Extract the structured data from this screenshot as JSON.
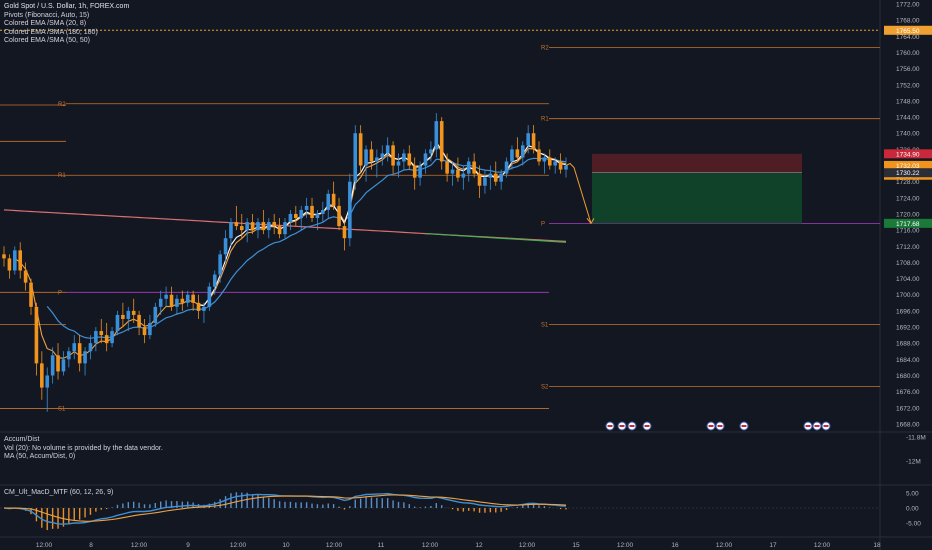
{
  "header": {
    "title": "Gold Spot / U.S. Dollar, 1h, FOREX.com",
    "indicators": [
      "Pivots (Fibonacci, Auto, 15)",
      "Colored EMA /SMA (20, 8)",
      "Colored EMA /SMA (180, 180)",
      "Colored EMA /SMA (50, 50)"
    ]
  },
  "volume_pane": {
    "labels": [
      "Accum/Dist",
      "Vol (20): No volume is provided by the data vendor.",
      "MA (50, Accum/Dist, 0)"
    ],
    "scale_labels": [
      "-11.8M",
      "-12M"
    ]
  },
  "macd_pane": {
    "label": "CM_Ult_MacD_MTF (60, 12, 26, 9)",
    "scale_labels": [
      "5.00",
      "0.00",
      "-5.00"
    ]
  },
  "colors": {
    "background": "#131722",
    "up_candle": "#3a8fd9",
    "down_candle": "#f0941d",
    "pivot_line": "#c8732a",
    "pivot_p": "#a93bc4",
    "ema_fast": "#ffffff",
    "ema_mid": "#3f8fd3",
    "ema_slow": "#d97070",
    "stop_zone": "#5a1f25",
    "target_zone": "#0f4a2a"
  },
  "chart_data": {
    "type": "candlestick",
    "symbol": "Gold Spot / U.S. Dollar",
    "timeframe": "1h",
    "y_range": [
      1666,
      1773
    ],
    "price_ticks": [
      "1772.00",
      "1768.00",
      "1764.00",
      "1760.00",
      "1756.00",
      "1752.00",
      "1748.00",
      "1744.00",
      "1740.00",
      "1736.00",
      "1732.00",
      "1728.00",
      "1724.00",
      "1720.00",
      "1716.00",
      "1712.00",
      "1708.00",
      "1704.00",
      "1700.00",
      "1696.00",
      "1692.00",
      "1688.00",
      "1684.00",
      "1680.00",
      "1676.00",
      "1672.00",
      "1668.00"
    ],
    "x_ticks": [
      "12:00",
      "8",
      "12:00",
      "9",
      "12:00",
      "10",
      "12:00",
      "11",
      "12:00",
      "12",
      "12:00",
      "15",
      "12:00",
      "16",
      "12:00",
      "17",
      "12:00",
      "18"
    ],
    "price_badges": [
      {
        "label": "1765.50",
        "value": 1765.5,
        "color": "#f0a030"
      },
      {
        "label": "1734.90",
        "value": 1734.9,
        "color": "#c9283a"
      },
      {
        "label": "1732.03",
        "value": 1732.03,
        "color": "#f0941d"
      },
      {
        "label": "29:59",
        "value": 1729.6,
        "color": "#f0941d"
      },
      {
        "label": "1730.22",
        "value": 1730.22,
        "color": "#2a2e39"
      },
      {
        "label": "1717.68",
        "value": 1717.68,
        "color": "#1b7a3a"
      }
    ],
    "pivot_levels": [
      {
        "label": "R2",
        "value": 1747
      },
      {
        "label": "R1",
        "value": 1743.6
      },
      {
        "label": "P",
        "value": 1717.68
      },
      {
        "label": "S1",
        "value": 1692.6
      },
      {
        "label": "S2",
        "value": 1677.3
      },
      {
        "label": "R2",
        "value": 1747.3
      },
      {
        "label": "R1",
        "value": 1729.6
      },
      {
        "label": "P",
        "value": 1700.6
      },
      {
        "label": "S1",
        "value": 1671.8
      },
      {
        "label": "R2",
        "value": 1761.2
      }
    ],
    "extra_level": 1765.5,
    "trade_box": {
      "entry": 1730.22,
      "stop": 1734.9,
      "target": 1717.68
    },
    "candles": [
      [
        1710,
        1712,
        1707,
        1709
      ],
      [
        1709,
        1710,
        1704,
        1706
      ],
      [
        1706,
        1712,
        1705,
        1711
      ],
      [
        1711,
        1713,
        1704,
        1706
      ],
      [
        1706,
        1708,
        1701,
        1703
      ],
      [
        1703,
        1704,
        1695,
        1697
      ],
      [
        1697,
        1698,
        1680,
        1683
      ],
      [
        1683,
        1686,
        1674,
        1677
      ],
      [
        1677,
        1682,
        1671,
        1680
      ],
      [
        1680,
        1687,
        1678,
        1685
      ],
      [
        1685,
        1688,
        1679,
        1681
      ],
      [
        1681,
        1686,
        1680,
        1684
      ],
      [
        1684,
        1687,
        1682,
        1686
      ],
      [
        1686,
        1690,
        1684,
        1688
      ],
      [
        1688,
        1690,
        1681,
        1683
      ],
      [
        1683,
        1687,
        1680,
        1686
      ],
      [
        1686,
        1690,
        1684,
        1688
      ],
      [
        1688,
        1692,
        1686,
        1691
      ],
      [
        1691,
        1694,
        1688,
        1690
      ],
      [
        1690,
        1693,
        1686,
        1688
      ],
      [
        1688,
        1692,
        1687,
        1691
      ],
      [
        1691,
        1696,
        1690,
        1695
      ],
      [
        1695,
        1698,
        1692,
        1694
      ],
      [
        1694,
        1697,
        1691,
        1696
      ],
      [
        1696,
        1699,
        1693,
        1695
      ],
      [
        1695,
        1696,
        1690,
        1692
      ],
      [
        1692,
        1694,
        1688,
        1690
      ],
      [
        1690,
        1695,
        1689,
        1693
      ],
      [
        1693,
        1698,
        1692,
        1697
      ],
      [
        1697,
        1701,
        1695,
        1699
      ],
      [
        1699,
        1702,
        1697,
        1700
      ],
      [
        1700,
        1702,
        1696,
        1697
      ],
      [
        1697,
        1700,
        1695,
        1699
      ],
      [
        1699,
        1701,
        1696,
        1698
      ],
      [
        1698,
        1701,
        1697,
        1700
      ],
      [
        1700,
        1701,
        1696,
        1698
      ],
      [
        1698,
        1700,
        1694,
        1696
      ],
      [
        1696,
        1698,
        1693,
        1697
      ],
      [
        1697,
        1703,
        1696,
        1702
      ],
      [
        1702,
        1706,
        1700,
        1705
      ],
      [
        1705,
        1711,
        1703,
        1710
      ],
      [
        1710,
        1716,
        1708,
        1714
      ],
      [
        1714,
        1719,
        1712,
        1718
      ],
      [
        1718,
        1722,
        1716,
        1717
      ],
      [
        1717,
        1720,
        1714,
        1716
      ],
      [
        1716,
        1719,
        1713,
        1718
      ],
      [
        1718,
        1720,
        1715,
        1716
      ],
      [
        1716,
        1719,
        1714,
        1718
      ],
      [
        1718,
        1721,
        1715,
        1716
      ],
      [
        1716,
        1719,
        1714,
        1718
      ],
      [
        1718,
        1720,
        1715,
        1717
      ],
      [
        1717,
        1719,
        1714,
        1715
      ],
      [
        1715,
        1719,
        1714,
        1718
      ],
      [
        1718,
        1721,
        1716,
        1720
      ],
      [
        1720,
        1722,
        1717,
        1719
      ],
      [
        1719,
        1722,
        1716,
        1721
      ],
      [
        1721,
        1724,
        1719,
        1722
      ],
      [
        1722,
        1724,
        1718,
        1719
      ],
      [
        1719,
        1721,
        1716,
        1720
      ],
      [
        1720,
        1723,
        1718,
        1721
      ],
      [
        1721,
        1726,
        1719,
        1725
      ],
      [
        1725,
        1728,
        1721,
        1722
      ],
      [
        1722,
        1724,
        1716,
        1717
      ],
      [
        1717,
        1718,
        1711,
        1714
      ],
      [
        1714,
        1730,
        1712,
        1728
      ],
      [
        1728,
        1742,
        1726,
        1740
      ],
      [
        1740,
        1742,
        1730,
        1732
      ],
      [
        1732,
        1737,
        1728,
        1736
      ],
      [
        1736,
        1738,
        1731,
        1733
      ],
      [
        1733,
        1736,
        1729,
        1734
      ],
      [
        1734,
        1737,
        1732,
        1735
      ],
      [
        1735,
        1739,
        1733,
        1737
      ],
      [
        1737,
        1738,
        1730,
        1732
      ],
      [
        1732,
        1735,
        1729,
        1733
      ],
      [
        1733,
        1736,
        1731,
        1735
      ],
      [
        1735,
        1737,
        1731,
        1732
      ],
      [
        1732,
        1734,
        1726,
        1729
      ],
      [
        1729,
        1733,
        1727,
        1732
      ],
      [
        1732,
        1736,
        1730,
        1735
      ],
      [
        1735,
        1738,
        1733,
        1736
      ],
      [
        1736,
        1745,
        1734,
        1743
      ],
      [
        1743,
        1744,
        1731,
        1733
      ],
      [
        1733,
        1735,
        1728,
        1730
      ],
      [
        1730,
        1733,
        1727,
        1731
      ],
      [
        1731,
        1734,
        1728,
        1729
      ],
      [
        1729,
        1732,
        1726,
        1730
      ],
      [
        1730,
        1734,
        1728,
        1733
      ],
      [
        1733,
        1735,
        1729,
        1730
      ],
      [
        1730,
        1732,
        1724,
        1727
      ],
      [
        1727,
        1731,
        1725,
        1729
      ],
      [
        1729,
        1732,
        1726,
        1730
      ],
      [
        1730,
        1733,
        1727,
        1728
      ],
      [
        1728,
        1731,
        1726,
        1730
      ],
      [
        1730,
        1734,
        1729,
        1733
      ],
      [
        1733,
        1737,
        1731,
        1736
      ],
      [
        1736,
        1739,
        1733,
        1734
      ],
      [
        1734,
        1738,
        1732,
        1737
      ],
      [
        1737,
        1742,
        1735,
        1740
      ],
      [
        1740,
        1742,
        1735,
        1736
      ],
      [
        1736,
        1738,
        1732,
        1733
      ],
      [
        1733,
        1735,
        1730,
        1734
      ],
      [
        1734,
        1736,
        1731,
        1732
      ],
      [
        1732,
        1734,
        1730,
        1733
      ],
      [
        1733,
        1735,
        1730,
        1731
      ],
      [
        1731,
        1734,
        1729,
        1732
      ]
    ]
  }
}
